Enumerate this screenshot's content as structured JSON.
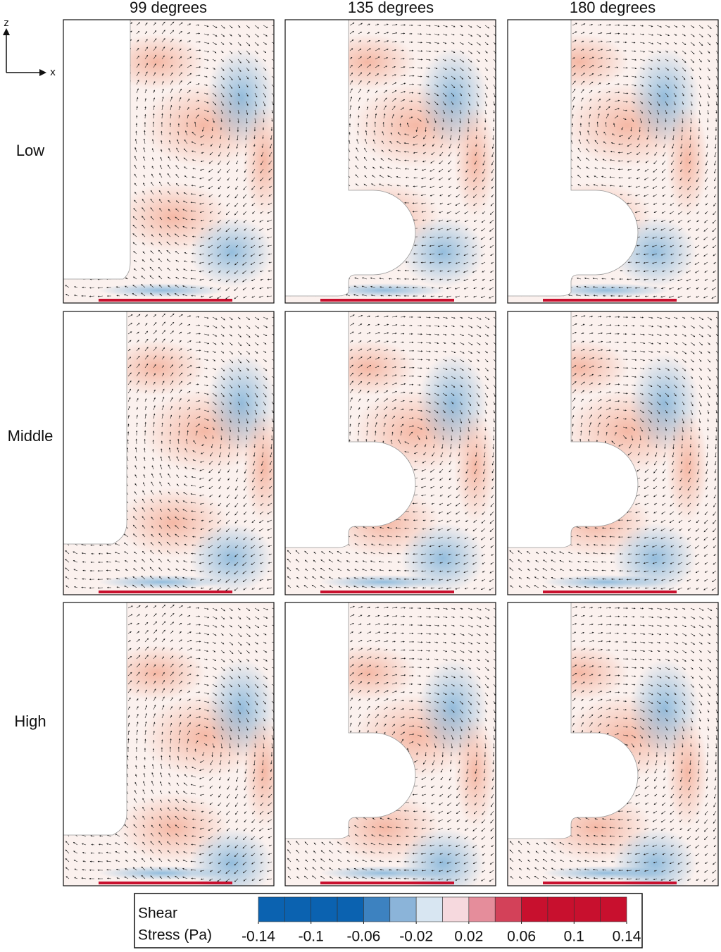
{
  "column_headers": [
    "99 degrees",
    "135 degrees",
    "180 degrees"
  ],
  "row_labels": [
    "Low",
    "Middle",
    "High"
  ],
  "axes_icon": {
    "vertical": "z",
    "horizontal": "x"
  },
  "colorbar": {
    "label_line1": "Shear",
    "label_line2": "Stress (Pa)",
    "lim": [
      -0.14,
      0.14
    ],
    "ticks": [
      -0.14,
      -0.1,
      -0.06,
      -0.02,
      0.02,
      0.06,
      0.1,
      0.14
    ]
  }
}
